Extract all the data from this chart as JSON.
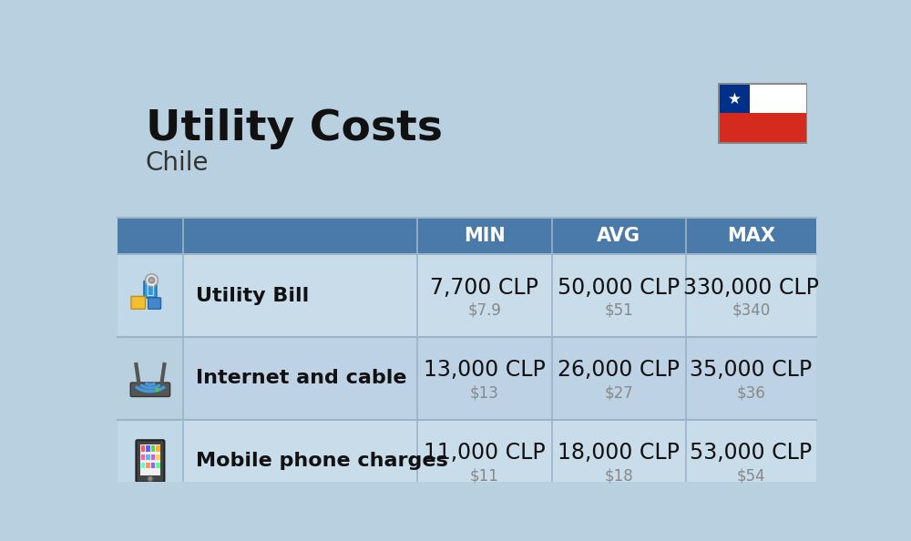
{
  "title": "Utility Costs",
  "subtitle": "Chile",
  "background_color": "#b8d0e0",
  "header_bg_color": "#4a7aaa",
  "header_text_color": "#ffffff",
  "row_bg_color_even": "#c8dcea",
  "row_bg_color_odd": "#bdd3e5",
  "icon_col_bg_even": "#c0d8e8",
  "icon_col_bg_odd": "#b8d0e0",
  "divider_color": "#9ab4c8",
  "columns": [
    "MIN",
    "AVG",
    "MAX"
  ],
  "rows": [
    {
      "label": "Utility Bill",
      "type": "utility",
      "min_clp": "7,700 CLP",
      "min_usd": "$7.9",
      "avg_clp": "50,000 CLP",
      "avg_usd": "$51",
      "max_clp": "330,000 CLP",
      "max_usd": "$340"
    },
    {
      "label": "Internet and cable",
      "type": "internet",
      "min_clp": "13,000 CLP",
      "min_usd": "$13",
      "avg_clp": "26,000 CLP",
      "avg_usd": "$27",
      "max_clp": "35,000 CLP",
      "max_usd": "$36"
    },
    {
      "label": "Mobile phone charges",
      "type": "mobile",
      "min_clp": "11,000 CLP",
      "min_usd": "$11",
      "avg_clp": "18,000 CLP",
      "avg_usd": "$18",
      "max_clp": "53,000 CLP",
      "max_usd": "$54"
    }
  ],
  "flag_colors": {
    "white": "#ffffff",
    "red": "#d52b1e",
    "blue": "#003087",
    "star": "#ffffff"
  },
  "clp_fontsize": 17,
  "usd_fontsize": 12,
  "label_fontsize": 16,
  "header_fontsize": 15,
  "title_fontsize": 34,
  "subtitle_fontsize": 20,
  "usd_color": "#888888",
  "label_color": "#111111",
  "clp_color": "#111111"
}
